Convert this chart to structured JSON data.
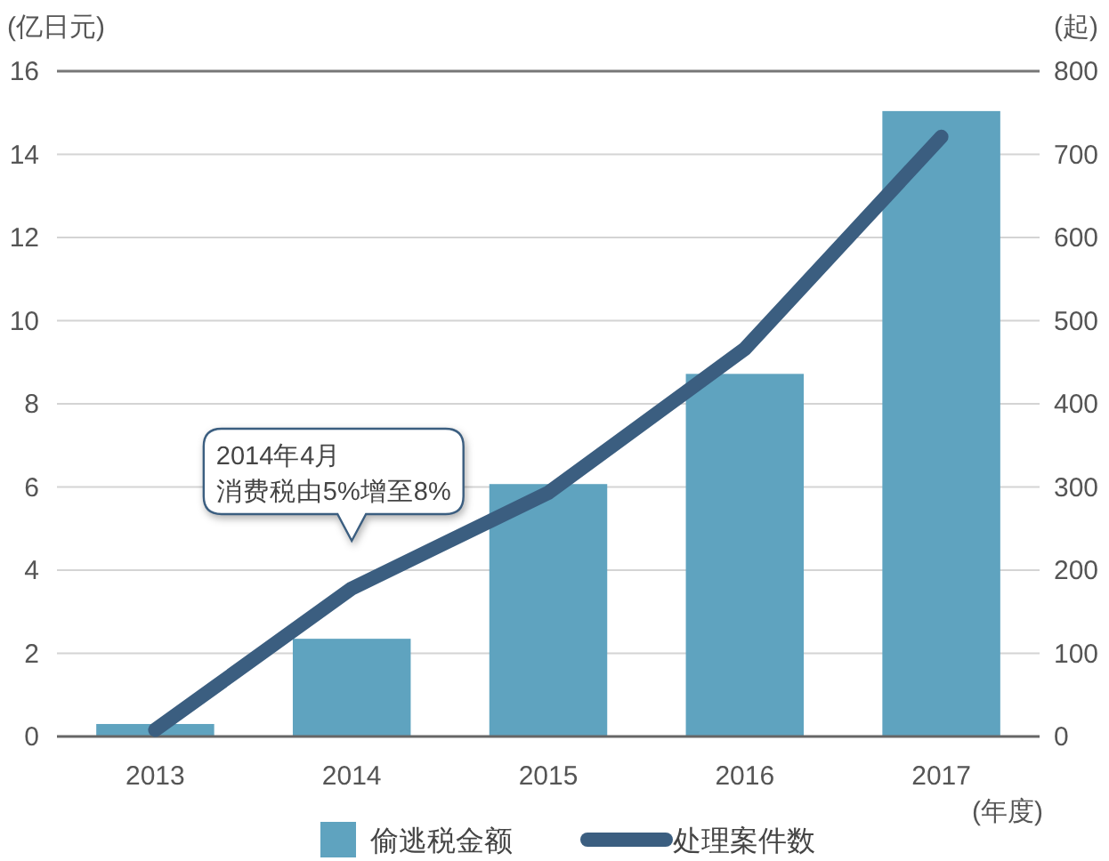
{
  "chart_data": {
    "type": "bar",
    "categories": [
      "2013",
      "2014",
      "2015",
      "2016",
      "2017"
    ],
    "series": [
      {
        "name": "偷逃税金额",
        "color": "#5fa3bf",
        "values": [
          0.3,
          2.35,
          6.07,
          8.72,
          15.04
        ]
      },
      {
        "name": "处理案件数",
        "type": "line",
        "axis": "y2",
        "color": "#3b5e80",
        "values": [
          8,
          178,
          293,
          466,
          721
        ]
      }
    ],
    "ylim": [
      0,
      16
    ],
    "yticks": [
      0,
      2,
      4,
      6,
      8,
      10,
      12,
      14,
      16
    ],
    "y2lim": [
      0,
      800
    ],
    "y2ticks": [
      0,
      100,
      200,
      300,
      400,
      500,
      600,
      700,
      800
    ],
    "ylabel": "(亿日元)",
    "y2label": "(起)",
    "xlabel": "(年度)",
    "grid": "y",
    "legend": "bottom",
    "annotations": [
      "2014年4月",
      "消费税由5%增至8%"
    ]
  }
}
